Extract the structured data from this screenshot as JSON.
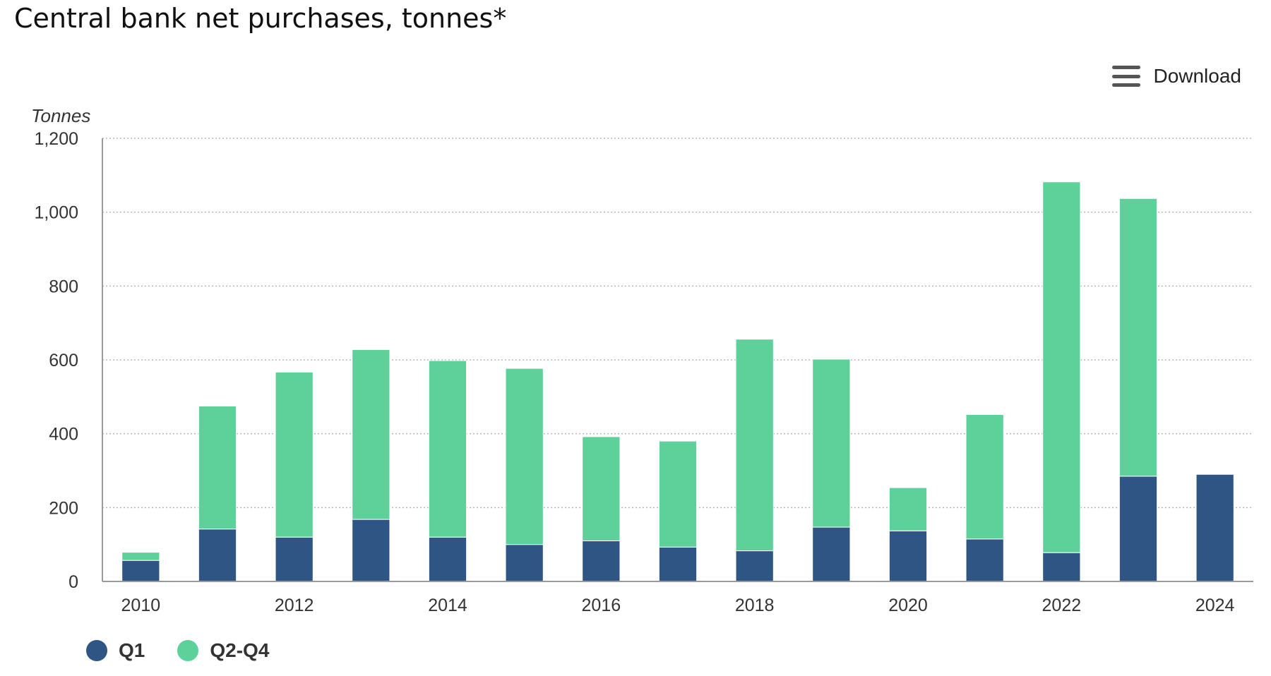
{
  "title": "Central bank net purchases, tonnes*",
  "download": {
    "label": "Download",
    "icon": "hamburger-menu-icon"
  },
  "colors": {
    "q1": "#2e5583",
    "q2q4": "#5ed09a",
    "grid": "#b8b8b8",
    "axis": "#9a9a9a"
  },
  "chart_data": {
    "type": "bar",
    "stacked": true,
    "ylabel": "Tonnes",
    "ylim": [
      0,
      1200
    ],
    "yticks": [
      "0",
      "200",
      "400",
      "600",
      "800",
      "1,000",
      "1,200"
    ],
    "ytick_values": [
      0,
      200,
      400,
      600,
      800,
      1000,
      1200
    ],
    "categories": [
      "2010",
      "2011",
      "2012",
      "2013",
      "2014",
      "2015",
      "2016",
      "2017",
      "2018",
      "2019",
      "2020",
      "2021",
      "2022",
      "2023",
      "2024"
    ],
    "xtick_labels": [
      "2010",
      "",
      "2012",
      "",
      "2014",
      "",
      "2016",
      "",
      "2018",
      "",
      "2020",
      "",
      "2022",
      "",
      "2024"
    ],
    "grid": true,
    "legend_position": "bottom-left",
    "series": [
      {
        "name": "Q1",
        "color": "#2e5583",
        "values": [
          57,
          142,
          120,
          168,
          120,
          100,
          110,
          93,
          83,
          147,
          137,
          115,
          78,
          285,
          290
        ]
      },
      {
        "name": "Q2-Q4",
        "color": "#5ed09a",
        "values": [
          22,
          333,
          447,
          460,
          478,
          477,
          282,
          287,
          573,
          455,
          117,
          337,
          1004,
          752,
          0
        ]
      }
    ]
  }
}
